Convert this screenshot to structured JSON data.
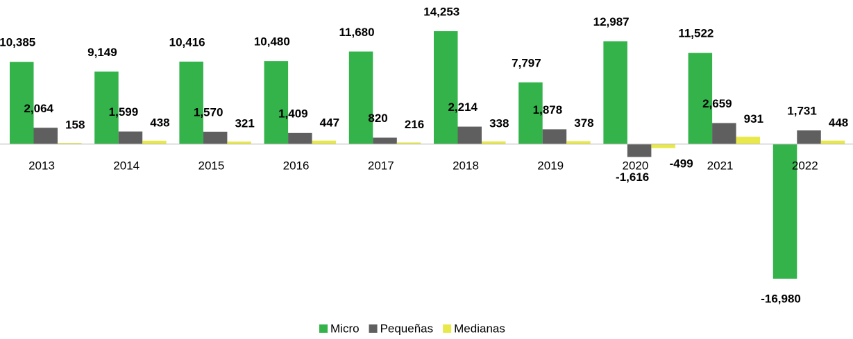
{
  "chart_data": {
    "type": "bar",
    "categories": [
      "2013",
      "2014",
      "2015",
      "2016",
      "2017",
      "2018",
      "2019",
      "2020",
      "2021",
      "2022"
    ],
    "series": [
      {
        "name": "Micro",
        "color": "#33b34a",
        "values": [
          10385,
          9149,
          10416,
          10480,
          11680,
          14253,
          7797,
          12987,
          11522,
          -16980
        ],
        "value_labels": [
          "10,385",
          "9,149",
          "10,416",
          "10,480",
          "11,680",
          "14,253",
          "7,797",
          "12,987",
          "11,522",
          "-16,980"
        ]
      },
      {
        "name": "Pequeñas",
        "color": "#5f5f5f",
        "values": [
          2064,
          1599,
          1570,
          1409,
          820,
          2214,
          1878,
          -1616,
          2659,
          1731
        ],
        "value_labels": [
          "2,064",
          "1,599",
          "1,570",
          "1,409",
          "820",
          "2,214",
          "1,878",
          "-1,616",
          "2,659",
          "1,731"
        ]
      },
      {
        "name": "Medianas",
        "color": "#e8e84a",
        "values": [
          158,
          438,
          321,
          447,
          216,
          338,
          378,
          -499,
          931,
          448
        ],
        "value_labels": [
          "158",
          "438",
          "321",
          "447",
          "216",
          "338",
          "378",
          "-499",
          "931",
          "448"
        ]
      }
    ],
    "legend": "bottom"
  }
}
